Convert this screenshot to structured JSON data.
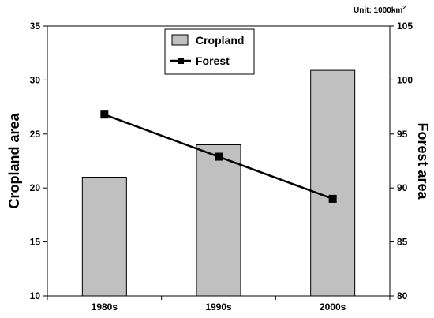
{
  "chart_data": {
    "type": "bar+line",
    "categories": [
      "1980s",
      "1990s",
      "2000s"
    ],
    "series": [
      {
        "name": "Cropland",
        "type": "bar",
        "axis": "left",
        "values": [
          21,
          24,
          30.9
        ],
        "color": "#c0c0c0"
      },
      {
        "name": "Forest",
        "type": "line",
        "axis": "right",
        "values": [
          96.8,
          92.9,
          89.0
        ],
        "color": "#000000"
      }
    ],
    "ylabel_left": "Cropland area",
    "ylabel_right": "Forest area",
    "ylim_left": [
      10,
      35
    ],
    "ylim_right": [
      80,
      105
    ],
    "yticks_left": [
      "10",
      "15",
      "20",
      "25",
      "30",
      "35"
    ],
    "yticks_right": [
      "80",
      "85",
      "90",
      "95",
      "100",
      "105"
    ],
    "unit_label": "Unit: 1000km",
    "unit_superscript": "2",
    "legend_position": "top-center",
    "grid": false
  }
}
